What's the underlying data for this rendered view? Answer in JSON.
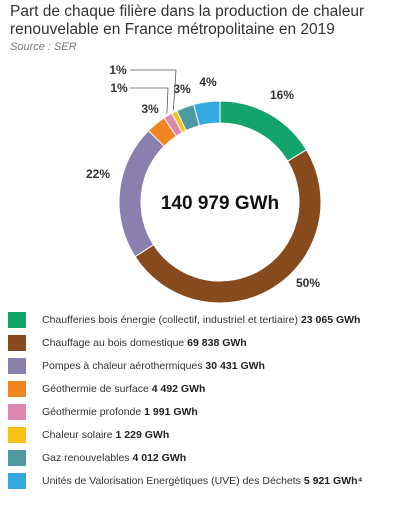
{
  "title": "Part de chaque filière dans la production de chaleur renouvelable en France métropolitaine en 2019",
  "source": "Source : SER",
  "chart_data": {
    "type": "pie",
    "title": "Part de chaque filière dans la production de chaleur renouvelable en France métropolitaine en 2019",
    "center_label": "140 979 GWh",
    "series": [
      {
        "name": "Chaufferies bois énergie (collectif, industriel et tertiaire)",
        "value_label": "23 065 GWh",
        "value": 23065,
        "percent_label": "16%",
        "color": "#13a46e"
      },
      {
        "name": "Chauffage au bois domestique",
        "value_label": "69 838 GWh",
        "value": 69838,
        "percent_label": "50%",
        "color": "#874a1c"
      },
      {
        "name": "Pompes à chaleur aérothermiques",
        "value_label": "30 431 GWh",
        "value": 30431,
        "percent_label": "22%",
        "color": "#8b7fb0"
      },
      {
        "name": "Géothermie de surface",
        "value_label": "4 492 GWh",
        "value": 4492,
        "percent_label": "3%",
        "color": "#f08421"
      },
      {
        "name": "Géothermie profonde",
        "value_label": "1 991 GWh",
        "value": 1991,
        "percent_label": "1%",
        "color": "#e186ae"
      },
      {
        "name": "Chaleur solaire",
        "value_label": "1 229 GWh",
        "value": 1229,
        "percent_label": "1%",
        "color": "#f8c214"
      },
      {
        "name": "Gaz renouvelables",
        "value_label": "4 012 GWh",
        "value": 4012,
        "percent_label": "3%",
        "color": "#4e9aa1"
      },
      {
        "name": "Unités de Valorisation Energétiques (UVE) des Déchets",
        "value_label": "5 921 GWh⁴",
        "value": 5921,
        "percent_label": "4%",
        "color": "#33a9e0"
      }
    ]
  }
}
